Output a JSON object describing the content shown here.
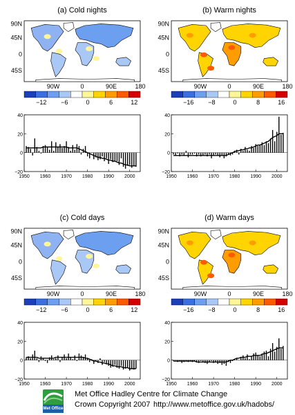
{
  "colors": {
    "coolbar": [
      "#1a3fb8",
      "#3a6fe0",
      "#6d9ff0",
      "#a9c8f6",
      "#ffffff",
      "#fff69a",
      "#ffd400",
      "#ff9d00",
      "#ff5a00",
      "#d40000"
    ],
    "warmbar": [
      "#1a3fb8",
      "#3a6fe0",
      "#6d9ff0",
      "#a9c8f6",
      "#ffffff",
      "#fff69a",
      "#ffd400",
      "#ff9d00",
      "#ff5a00",
      "#d40000"
    ],
    "land": "#f2f2f2",
    "ocean": "#ffffff"
  },
  "footer": {
    "line1": "Met Office Hadley Centre for Climate Change",
    "line2_left": "Crown Copyright 2007",
    "line2_right": "http://www.metoffice.gov.uk/hadobs/",
    "logo_text": "Met Office"
  },
  "chart_data": [
    {
      "panel": "a",
      "title": "(a) Cold nights",
      "type": "bar",
      "map_lat_labels": [
        "90N",
        "45N",
        "0",
        "45S"
      ],
      "map_lon_labels": [
        "90W",
        "0",
        "90E",
        "180"
      ],
      "map_tint": "cool",
      "colorbar_ticks": [
        "−12",
        "−6",
        "0",
        "6",
        "12"
      ],
      "x": [
        1951,
        1952,
        1953,
        1954,
        1955,
        1956,
        1957,
        1958,
        1959,
        1960,
        1961,
        1962,
        1963,
        1964,
        1965,
        1966,
        1967,
        1968,
        1969,
        1970,
        1971,
        1972,
        1973,
        1974,
        1975,
        1976,
        1977,
        1978,
        1979,
        1980,
        1981,
        1982,
        1983,
        1984,
        1985,
        1986,
        1987,
        1988,
        1989,
        1990,
        1991,
        1992,
        1993,
        1994,
        1995,
        1996,
        1997,
        1998,
        1999,
        2000,
        2001,
        2002,
        2003
      ],
      "values": [
        7,
        6,
        4,
        -3,
        15,
        6,
        2,
        -1,
        7,
        8,
        6,
        3,
        12,
        2,
        11,
        6,
        9,
        5,
        7,
        12,
        6,
        2,
        8,
        3,
        9,
        7,
        -2,
        4,
        7,
        -4,
        -6,
        0,
        -7,
        -5,
        -8,
        -7,
        -4,
        -9,
        -6,
        -12,
        -7,
        -10,
        -9,
        -9,
        -13,
        -6,
        -15,
        -17,
        -14,
        -13,
        -16,
        -14,
        -15
      ],
      "smooth": [
        5,
        5,
        5,
        5,
        5,
        5,
        5,
        5,
        6,
        6,
        6,
        6,
        6,
        6,
        6,
        6,
        6,
        6,
        6,
        6,
        5,
        5,
        5,
        5,
        5,
        4,
        3,
        2,
        1,
        0,
        -1,
        -2,
        -3,
        -4,
        -5,
        -5,
        -6,
        -6,
        -7,
        -8,
        -8,
        -9,
        -9,
        -10,
        -11,
        -11,
        -12,
        -13,
        -13,
        -14,
        -14,
        -14,
        -14
      ],
      "xlim": [
        1950,
        2005
      ],
      "ylim": [
        -20,
        40
      ],
      "yticks": [
        "−20",
        "0",
        "20",
        "40"
      ],
      "xticks": [
        "1950",
        "1960",
        "1970",
        "1980",
        "1990",
        "2000"
      ]
    },
    {
      "panel": "b",
      "title": "(b) Warm nights",
      "type": "bar",
      "map_lat_labels": [
        "90N",
        "45N",
        "0",
        "45S"
      ],
      "map_lon_labels": [
        "90W",
        "0",
        "90E",
        "180"
      ],
      "map_tint": "warm",
      "colorbar_ticks": [
        "−16",
        "−8",
        "0",
        "8",
        "16"
      ],
      "x": [
        1951,
        1952,
        1953,
        1954,
        1955,
        1956,
        1957,
        1958,
        1959,
        1960,
        1961,
        1962,
        1963,
        1964,
        1965,
        1966,
        1967,
        1968,
        1969,
        1970,
        1971,
        1972,
        1973,
        1974,
        1975,
        1976,
        1977,
        1978,
        1979,
        1980,
        1981,
        1982,
        1983,
        1984,
        1985,
        1986,
        1987,
        1988,
        1989,
        1990,
        1991,
        1992,
        1993,
        1994,
        1995,
        1996,
        1997,
        1998,
        1999,
        2000,
        2001,
        2002,
        2003
      ],
      "values": [
        -2,
        -3,
        -1,
        -4,
        -2,
        -3,
        2,
        -5,
        -2,
        -2,
        -1,
        -4,
        -2,
        -4,
        -3,
        -2,
        -4,
        -2,
        -6,
        -3,
        -2,
        -3,
        -5,
        -3,
        -6,
        -4,
        -2,
        -3,
        -2,
        2,
        3,
        -2,
        4,
        2,
        6,
        3,
        2,
        7,
        5,
        9,
        7,
        8,
        11,
        8,
        12,
        10,
        15,
        24,
        12,
        22,
        38,
        19,
        21
      ],
      "smooth": [
        -3,
        -3,
        -3,
        -3,
        -3,
        -3,
        -3,
        -3,
        -3,
        -3,
        -3,
        -3,
        -3,
        -3,
        -3,
        -3,
        -3,
        -3,
        -3,
        -3,
        -3,
        -3,
        -3,
        -3,
        -3,
        -3,
        -2,
        -1,
        0,
        1,
        2,
        2,
        3,
        3,
        4,
        4,
        5,
        5,
        6,
        7,
        8,
        8,
        9,
        10,
        11,
        12,
        14,
        16,
        17,
        18,
        20,
        20,
        20
      ],
      "xlim": [
        1950,
        2005
      ],
      "ylim": [
        -20,
        40
      ],
      "yticks": [
        "−20",
        "0",
        "20",
        "40"
      ],
      "xticks": [
        "1950",
        "1960",
        "1970",
        "1980",
        "1990",
        "2000"
      ]
    },
    {
      "panel": "c",
      "title": "(c) Cold days",
      "type": "bar",
      "map_lat_labels": [
        "90N",
        "45N",
        "0",
        "45S"
      ],
      "map_lon_labels": [
        "90W",
        "0",
        "90E",
        "180"
      ],
      "map_tint": "cool",
      "colorbar_ticks": [
        "−12",
        "−6",
        "0",
        "6",
        "12"
      ],
      "x": [
        1951,
        1952,
        1953,
        1954,
        1955,
        1956,
        1957,
        1958,
        1959,
        1960,
        1961,
        1962,
        1963,
        1964,
        1965,
        1966,
        1967,
        1968,
        1969,
        1970,
        1971,
        1972,
        1973,
        1974,
        1975,
        1976,
        1977,
        1978,
        1979,
        1980,
        1981,
        1982,
        1983,
        1984,
        1985,
        1986,
        1987,
        1988,
        1989,
        1990,
        1991,
        1992,
        1993,
        1994,
        1995,
        1996,
        1997,
        1998,
        1999,
        2000,
        2001,
        2002,
        2003
      ],
      "values": [
        3,
        4,
        2,
        6,
        10,
        2,
        -2,
        4,
        2,
        -1,
        -3,
        3,
        5,
        1,
        2,
        5,
        -2,
        3,
        6,
        2,
        7,
        3,
        1,
        5,
        -1,
        7,
        5,
        3,
        6,
        2,
        -2,
        1,
        -4,
        -1,
        -3,
        2,
        -5,
        -2,
        -4,
        -6,
        -8,
        -7,
        -5,
        -8,
        -9,
        -6,
        -10,
        -9,
        -8,
        -11,
        -9,
        -10,
        -9
      ],
      "smooth": [
        3,
        3,
        3,
        3,
        3,
        3,
        2,
        2,
        2,
        2,
        2,
        2,
        2,
        2,
        3,
        3,
        3,
        3,
        3,
        3,
        3,
        3,
        3,
        3,
        3,
        3,
        3,
        3,
        2,
        2,
        1,
        0,
        -1,
        -1,
        -2,
        -2,
        -3,
        -3,
        -4,
        -4,
        -5,
        -6,
        -6,
        -7,
        -7,
        -7,
        -8,
        -8,
        -8,
        -9,
        -9,
        -9,
        -9
      ],
      "xlim": [
        1950,
        2005
      ],
      "ylim": [
        -20,
        40
      ],
      "yticks": [
        "−20",
        "0",
        "20",
        "40"
      ],
      "xticks": [
        "1950",
        "1960",
        "1970",
        "1980",
        "1990",
        "2000"
      ]
    },
    {
      "panel": "d",
      "title": "(d) Warm days",
      "type": "bar",
      "map_lat_labels": [
        "90N",
        "45N",
        "0",
        "45S"
      ],
      "map_lon_labels": [
        "90W",
        "0",
        "90E",
        "180"
      ],
      "map_tint": "warm",
      "colorbar_ticks": [
        "−16",
        "−8",
        "0",
        "8",
        "16"
      ],
      "x": [
        1951,
        1952,
        1953,
        1954,
        1955,
        1956,
        1957,
        1958,
        1959,
        1960,
        1961,
        1962,
        1963,
        1964,
        1965,
        1966,
        1967,
        1968,
        1969,
        1970,
        1971,
        1972,
        1973,
        1974,
        1975,
        1976,
        1977,
        1978,
        1979,
        1980,
        1981,
        1982,
        1983,
        1984,
        1985,
        1986,
        1987,
        1988,
        1989,
        1990,
        1991,
        1992,
        1993,
        1994,
        1995,
        1996,
        1997,
        1998,
        1999,
        2000,
        2001,
        2002,
        2003
      ],
      "values": [
        -1,
        0,
        -2,
        -1,
        -3,
        -2,
        -1,
        -2,
        -1,
        -2,
        -1,
        -2,
        -3,
        -1,
        -2,
        -3,
        -4,
        -2,
        -1,
        -3,
        -2,
        -4,
        -3,
        -5,
        -4,
        -6,
        -2,
        -3,
        -1,
        1,
        2,
        0,
        3,
        5,
        2,
        6,
        1,
        4,
        7,
        8,
        5,
        4,
        7,
        9,
        10,
        4,
        12,
        18,
        9,
        14,
        23,
        12,
        15
      ],
      "smooth": [
        -1,
        -1,
        -1,
        -1,
        -1,
        -1,
        -1,
        -1,
        -1,
        -1,
        -1,
        -2,
        -2,
        -2,
        -2,
        -2,
        -2,
        -2,
        -2,
        -2,
        -2,
        -2,
        -2,
        -2,
        -2,
        -2,
        -1,
        0,
        0,
        1,
        2,
        2,
        3,
        3,
        3,
        4,
        4,
        4,
        5,
        5,
        5,
        5,
        6,
        7,
        7,
        8,
        9,
        10,
        11,
        12,
        13,
        13,
        13
      ],
      "xlim": [
        1950,
        2005
      ],
      "ylim": [
        -20,
        40
      ],
      "yticks": [
        "−20",
        "0",
        "20",
        "40"
      ],
      "xticks": [
        "1950",
        "1960",
        "1970",
        "1980",
        "1990",
        "2000"
      ]
    }
  ]
}
